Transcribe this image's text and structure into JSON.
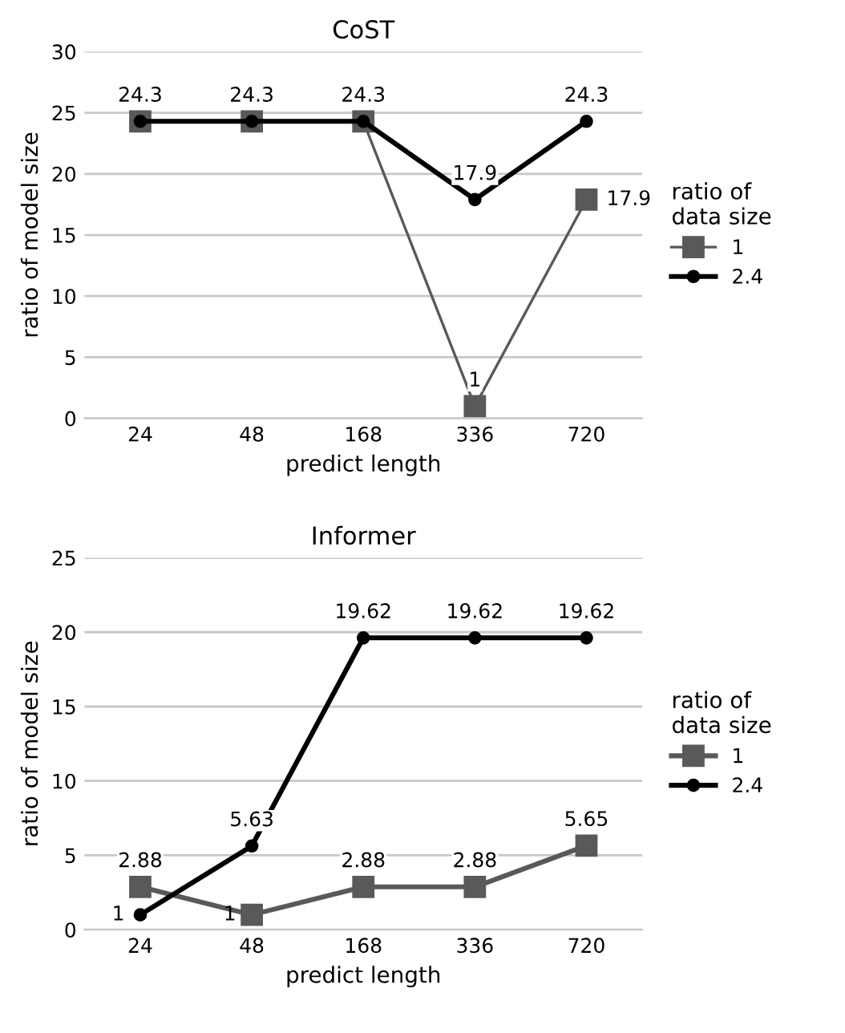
{
  "chart_data": [
    {
      "type": "line",
      "title": "CoST",
      "xlabel": "predict length",
      "ylabel": "ratio of model size",
      "legend_title": "ratio of\ndata size",
      "categories": [
        "24",
        "48",
        "168",
        "336",
        "720"
      ],
      "ylim": [
        0,
        30
      ],
      "yticks": [
        0,
        5,
        10,
        15,
        20,
        25,
        30
      ],
      "grid": "y",
      "legend": "right",
      "series": [
        {
          "name": "1",
          "color": "#595959",
          "marker": "square",
          "values": [
            24.3,
            24.3,
            24.3,
            1,
            17.9
          ],
          "value_labels": [
            null,
            null,
            null,
            "1",
            "17.9"
          ]
        },
        {
          "name": "2.4",
          "color": "#000000",
          "marker": "circle",
          "values": [
            24.3,
            24.3,
            24.3,
            17.9,
            24.3
          ],
          "value_labels": [
            "24.3",
            "24.3",
            "24.3",
            "17.9",
            "24.3"
          ]
        }
      ]
    },
    {
      "type": "line",
      "title": "Informer",
      "xlabel": "predict length",
      "ylabel": "ratio of model size",
      "legend_title": "ratio of\ndata size",
      "categories": [
        "24",
        "48",
        "168",
        "336",
        "720"
      ],
      "ylim": [
        0,
        25
      ],
      "yticks": [
        0,
        5,
        10,
        15,
        20,
        25
      ],
      "grid": "y",
      "legend": "right",
      "series": [
        {
          "name": "1",
          "color": "#595959",
          "marker": "square",
          "values": [
            2.88,
            1,
            2.88,
            2.88,
            5.65
          ],
          "value_labels": [
            "2.88",
            "1",
            "2.88",
            "2.88",
            "5.65"
          ]
        },
        {
          "name": "2.4",
          "color": "#000000",
          "marker": "circle",
          "values": [
            1,
            5.63,
            19.62,
            19.62,
            19.62
          ],
          "value_labels": [
            "1",
            "5.63",
            "19.62",
            "19.62",
            "19.62"
          ]
        }
      ]
    }
  ]
}
